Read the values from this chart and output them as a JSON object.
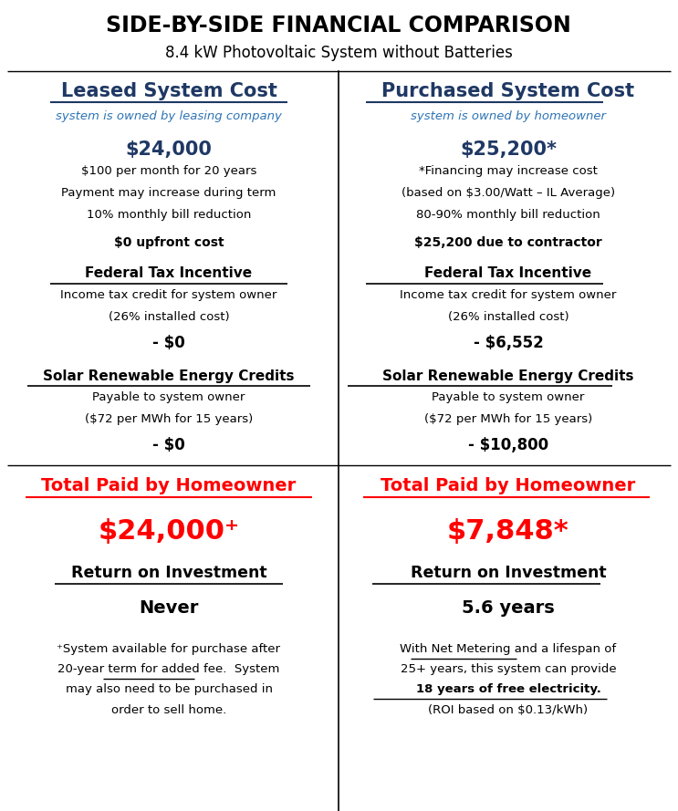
{
  "title": "SIDE-BY-SIDE FINANCIAL COMPARISON",
  "subtitle": "8.4 kW Photovoltaic System without Batteries",
  "bg_color": "#ffffff",
  "left": {
    "header": "Leased System Cost",
    "header_sub": "system is owned by leasing company",
    "cost": "$24,000",
    "cost_details": [
      "$100 per month for 20 years",
      "Payment may increase during term",
      "10% monthly bill reduction"
    ],
    "upfront": "$0 upfront cost",
    "tax_label": "Federal Tax Incentive",
    "tax_desc": [
      "Income tax credit for system owner",
      "(26% installed cost)"
    ],
    "tax_value": "- $0",
    "srec_label": "Solar Renewable Energy Credits",
    "srec_desc": [
      "Payable to system owner",
      "($72 per MWh for 15 years)"
    ],
    "srec_value": "- $0",
    "total_label": "Total Paid by Homeowner",
    "total_value": "$24,000⁺",
    "roi_label": "Return on Investment",
    "roi_value": "Never",
    "footnote_lines": [
      "⁺System available for purchase after",
      "20-year term for added fee.  System",
      "may also need to be purchased in",
      "order to sell home."
    ]
  },
  "right": {
    "header": "Purchased System Cost",
    "header_sub": "system is owned by homeowner",
    "cost": "$25,200*",
    "cost_details": [
      "*Financing may increase cost",
      "(based on $3.00/Watt – IL Average)",
      "80-90% monthly bill reduction"
    ],
    "upfront": "$25,200 due to contractor",
    "tax_label": "Federal Tax Incentive",
    "tax_desc": [
      "Income tax credit for system owner",
      "(26% installed cost)"
    ],
    "tax_value": "- $6,552",
    "srec_label": "Solar Renewable Energy Credits",
    "srec_desc": [
      "Payable to system owner",
      "($72 per MWh for 15 years)"
    ],
    "srec_value": "- $10,800",
    "total_label": "Total Paid by Homeowner",
    "total_value": "$7,848*",
    "roi_label": "Return on Investment",
    "roi_value": "5.6 years",
    "footnote_lines": [
      "With Net Metering and a lifespan of",
      "25+ years, this system can provide",
      "18 years of free electricity.",
      "(ROI based on $0.13/kWh)"
    ]
  },
  "blue_dark": "#1F3864",
  "blue_medium": "#2E74B5",
  "red": "#FF0000",
  "black": "#000000"
}
